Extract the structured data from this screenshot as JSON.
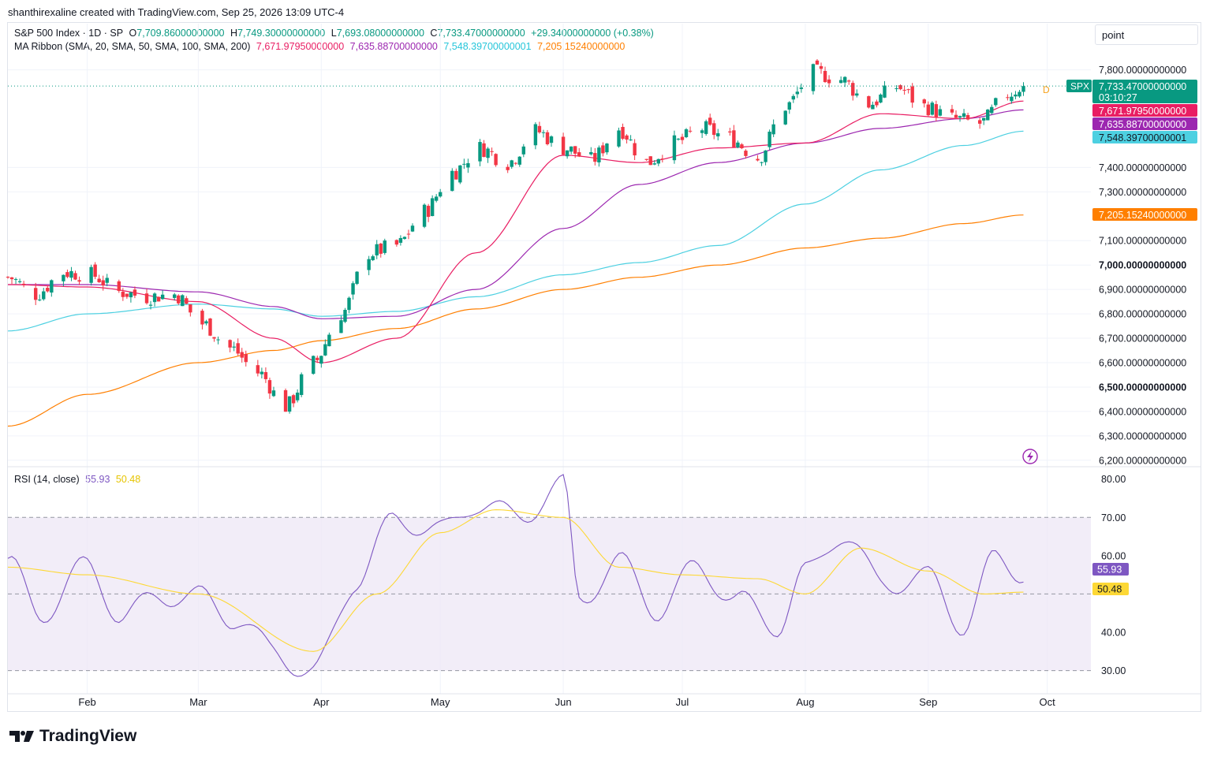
{
  "header": {
    "credit": "shanthirexaline created with TradingView.com, Sep 25, 2026 13:09 UTC-4",
    "symbol_line": "S&P 500 Index · 1D · SP",
    "open_label": "O",
    "open": "7,709.86000000000",
    "high_label": "H",
    "high": "7,749.30000000000",
    "low_label": "L",
    "low": "7,693.08000000000",
    "close_label": "C",
    "close": "7,733.47000000000",
    "change": "+29.34000000000 (+0.38%)",
    "ma_title": "MA Ribbon (SMA, 20, SMA, 50, SMA, 100, SMA, 200)",
    "ma20": "7,671.97950000000",
    "ma50": "7,635.88700000000",
    "ma100": "7,548.39700000001",
    "ma200": "7,205.15240000000",
    "rsi_title": "RSI (14, close)",
    "rsi_value": "55.93",
    "rsi_ma_value": "50.48",
    "scale_mode": "point"
  },
  "badges": {
    "symbol": "SPX",
    "price": "7,733.47000000000",
    "countdown": "03:10:27",
    "ma20": "7,671.97950000000",
    "ma50": "7,635.88700000000",
    "ma100": "7,548.39700000001",
    "ma200": "7,205.15240000000",
    "rsi": "55.93",
    "rsi_ma": "50.48",
    "d_marker": "D"
  },
  "colors": {
    "up": "#089981",
    "down": "#f23645",
    "ma20": "#e91e63",
    "ma50": "#9c27b0",
    "ma100": "#4dd0e1",
    "ma200": "#ff7f00",
    "rsi": "#7e57c2",
    "rsi_ma": "#fdd835",
    "rsi_band": "#ede7f6"
  },
  "footer": {
    "logo_text": "TradingView"
  },
  "chart_data": [
    {
      "type": "candlestick",
      "title": "S&P 500 Index · 1D · SP",
      "ylim": [
        6180,
        7860
      ],
      "y_ticks": [
        "7,800.00000000000",
        "7,400.00000000000",
        "7,300.00000000000",
        "7,100.00000000000",
        "7,000.00000000000",
        "6,900.00000000000",
        "6,800.00000000000",
        "6,700.00000000000",
        "6,600.00000000000",
        "6,500.00000000000",
        "6,400.00000000000",
        "6,300.00000000000",
        "6,200.00000000000"
      ],
      "y_tick_values": [
        7800,
        7400,
        7300,
        7100,
        7000,
        6900,
        6800,
        6700,
        6600,
        6500,
        6400,
        6300,
        6200
      ],
      "bold_ticks": [
        "7,000.00000000000",
        "6,500.00000000000"
      ],
      "x_ticks": [
        "Feb",
        "Mar",
        "Apr",
        "May",
        "Jun",
        "Jul",
        "Aug",
        "Sep",
        "Oct"
      ],
      "x_tick_dates": [
        "2026-02-01",
        "2026-03-01",
        "2026-04-01",
        "2026-05-01",
        "2026-06-01",
        "2026-07-01",
        "2026-08-01",
        "2026-09-01",
        "2026-10-01"
      ],
      "x_range": [
        "2026-01-12",
        "2026-10-12"
      ],
      "closes": {
        "dates": [
          "2026-01-12",
          "2026-01-19",
          "2026-01-26",
          "2026-02-02",
          "2026-02-09",
          "2026-02-16",
          "2026-02-23",
          "2026-03-02",
          "2026-03-09",
          "2026-03-16",
          "2026-03-23",
          "2026-03-30",
          "2026-04-06",
          "2026-04-13",
          "2026-04-20",
          "2026-04-27",
          "2026-05-04",
          "2026-05-11",
          "2026-05-18",
          "2026-05-25",
          "2026-06-01",
          "2026-06-08",
          "2026-06-15",
          "2026-06-22",
          "2026-06-29",
          "2026-07-06",
          "2026-07-13",
          "2026-07-20",
          "2026-07-27",
          "2026-08-03",
          "2026-08-10",
          "2026-08-17",
          "2026-08-24",
          "2026-08-31",
          "2026-09-07",
          "2026-09-14",
          "2026-09-21",
          "2026-09-25"
        ],
        "values": [
          6950,
          6880,
          6970,
          6960,
          6890,
          6870,
          6880,
          6760,
          6660,
          6560,
          6420,
          6600,
          6800,
          7050,
          7080,
          7220,
          7380,
          7480,
          7420,
          7550,
          7480,
          7430,
          7560,
          7420,
          7500,
          7560,
          7520,
          7440,
          7650,
          7790,
          7760,
          7660,
          7730,
          7650,
          7600,
          7580,
          7700,
          7733.47
        ]
      },
      "series": [
        {
          "name": "SMA 20",
          "last": 7671.9795
        },
        {
          "name": "SMA 50",
          "last": 7635.887
        },
        {
          "name": "SMA 100",
          "last": 7548.397
        },
        {
          "name": "SMA 200",
          "last": 7205.1524
        }
      ],
      "ma_paths": {
        "dates": [
          "2026-01-12",
          "2026-02-01",
          "2026-03-01",
          "2026-03-20",
          "2026-04-01",
          "2026-04-20",
          "2026-05-10",
          "2026-06-01",
          "2026-06-20",
          "2026-07-10",
          "2026-08-01",
          "2026-08-20",
          "2026-09-10",
          "2026-09-25"
        ],
        "ma20": [
          6920,
          6910,
          6850,
          6700,
          6600,
          6700,
          7050,
          7450,
          7420,
          7480,
          7500,
          7620,
          7600,
          7671.98
        ],
        "ma50": [
          6920,
          6920,
          6890,
          6830,
          6780,
          6790,
          6900,
          7150,
          7330,
          7420,
          7500,
          7560,
          7600,
          7635.89
        ],
        "ma100": [
          6730,
          6800,
          6840,
          6820,
          6790,
          6810,
          6870,
          6960,
          7010,
          7080,
          7250,
          7390,
          7490,
          7548.4
        ],
        "ma200": [
          6340,
          6470,
          6600,
          6650,
          6690,
          6740,
          6820,
          6900,
          6950,
          7000,
          7070,
          7110,
          7170,
          7205.15
        ]
      }
    },
    {
      "type": "line",
      "title": "RSI (14, close)",
      "ylim": [
        26,
        82
      ],
      "y_ticks": [
        "80.00",
        "70.00",
        "60.00",
        "40.00",
        "30.00"
      ],
      "y_tick_values": [
        80,
        70,
        60,
        40,
        30
      ],
      "band": [
        30,
        70
      ],
      "midline": 50,
      "series": [
        {
          "name": "RSI",
          "dates": [
            "2026-01-12",
            "2026-01-20",
            "2026-02-01",
            "2026-02-10",
            "2026-02-20",
            "2026-03-01",
            "2026-03-10",
            "2026-03-20",
            "2026-03-30",
            "2026-04-10",
            "2026-04-20",
            "2026-05-01",
            "2026-05-10",
            "2026-05-20",
            "2026-06-01",
            "2026-06-05",
            "2026-06-15",
            "2026-06-25",
            "2026-07-05",
            "2026-07-15",
            "2026-07-25",
            "2026-08-01",
            "2026-08-10",
            "2026-08-20",
            "2026-09-01",
            "2026-09-10",
            "2026-09-18",
            "2026-09-25"
          ],
          "values": [
            58,
            45,
            57,
            44,
            50,
            49,
            44,
            35,
            29,
            54,
            70,
            66,
            74,
            70,
            78,
            49,
            58,
            46,
            57,
            48,
            42,
            55,
            66,
            53,
            54,
            42,
            59,
            55.93
          ]
        },
        {
          "name": "RSI MA",
          "dates": [
            "2026-01-12",
            "2026-02-01",
            "2026-03-01",
            "2026-03-30",
            "2026-04-15",
            "2026-05-01",
            "2026-05-15",
            "2026-06-01",
            "2026-06-15",
            "2026-07-01",
            "2026-07-20",
            "2026-08-01",
            "2026-08-15",
            "2026-09-01",
            "2026-09-15",
            "2026-09-25"
          ],
          "values": [
            57,
            55,
            50,
            35,
            50,
            66,
            72,
            70,
            57,
            55,
            54,
            50,
            62,
            56,
            50,
            50.48
          ]
        }
      ]
    }
  ]
}
